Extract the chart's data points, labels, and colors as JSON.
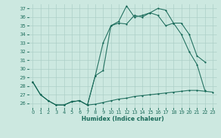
{
  "xlabel": "Humidex (Indice chaleur)",
  "bg_color": "#cce8e0",
  "grid_color": "#aacec6",
  "line_color": "#1a6b5a",
  "xlim": [
    -0.5,
    23.5
  ],
  "ylim": [
    25.5,
    37.5
  ],
  "yticks": [
    26,
    27,
    28,
    29,
    30,
    31,
    32,
    33,
    34,
    35,
    36,
    37
  ],
  "xticks": [
    0,
    1,
    2,
    3,
    4,
    5,
    6,
    7,
    8,
    9,
    10,
    11,
    12,
    13,
    14,
    15,
    16,
    17,
    18,
    19,
    20,
    21,
    22,
    23
  ],
  "line1_x": [
    0,
    1,
    2,
    3,
    4,
    5,
    6,
    7,
    8,
    9,
    10,
    11,
    12,
    13,
    14,
    15,
    16,
    17,
    18,
    19,
    20,
    21,
    22,
    23
  ],
  "line1_y": [
    28.5,
    27.0,
    26.3,
    25.8,
    25.8,
    26.2,
    26.3,
    25.8,
    25.9,
    26.1,
    26.3,
    26.5,
    26.6,
    26.8,
    26.9,
    27.0,
    27.1,
    27.2,
    27.3,
    27.4,
    27.5,
    27.5,
    27.4,
    27.3
  ],
  "line2_x": [
    0,
    1,
    2,
    3,
    4,
    5,
    6,
    7,
    8,
    9,
    10,
    11,
    12,
    13,
    14,
    15,
    16,
    17,
    18,
    19,
    20,
    21,
    22
  ],
  "line2_y": [
    28.5,
    27.0,
    26.3,
    25.8,
    25.8,
    26.2,
    26.3,
    25.8,
    29.2,
    29.8,
    35.0,
    35.3,
    35.2,
    36.2,
    36.0,
    36.5,
    36.2,
    35.0,
    35.3,
    34.0,
    32.0,
    30.5,
    27.5
  ],
  "line3_x": [
    0,
    1,
    2,
    3,
    4,
    5,
    6,
    7,
    8,
    9,
    10,
    11,
    12,
    13,
    14,
    15,
    16,
    17,
    18,
    19,
    20,
    21,
    22
  ],
  "line3_y": [
    28.5,
    27.0,
    26.3,
    25.8,
    25.8,
    26.2,
    26.3,
    25.8,
    29.2,
    33.0,
    35.0,
    35.5,
    37.3,
    36.0,
    36.2,
    36.5,
    37.0,
    36.8,
    35.3,
    35.3,
    34.0,
    31.5,
    30.8
  ]
}
